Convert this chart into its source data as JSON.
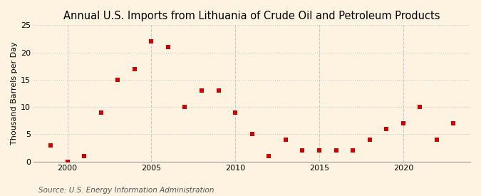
{
  "title": "Annual U.S. Imports from Lithuania of Crude Oil and Petroleum Products",
  "ylabel": "Thousand Barrels per Day",
  "source": "Source: U.S. Energy Information Administration",
  "years": [
    1999,
    2000,
    2001,
    2002,
    2003,
    2004,
    2005,
    2006,
    2007,
    2008,
    2009,
    2010,
    2011,
    2012,
    2013,
    2014,
    2015,
    2016,
    2017,
    2018,
    2019,
    2020,
    2021,
    2022,
    2023
  ],
  "values": [
    3,
    0,
    1,
    9,
    15,
    17,
    22,
    21,
    10,
    13,
    13,
    9,
    5,
    1,
    4,
    2,
    2,
    2,
    2,
    4,
    6,
    7,
    10,
    4,
    7
  ],
  "background_color": "#fdf3e0",
  "marker_color": "#cc0000",
  "grid_color": "#c8c8c8",
  "ylim": [
    0,
    25
  ],
  "xlim": [
    1998,
    2024
  ],
  "yticks": [
    0,
    5,
    10,
    15,
    20,
    25
  ],
  "xticks": [
    2000,
    2005,
    2010,
    2015,
    2020
  ],
  "title_fontsize": 10.5,
  "axis_fontsize": 8,
  "source_fontsize": 7.5,
  "marker_size": 16
}
